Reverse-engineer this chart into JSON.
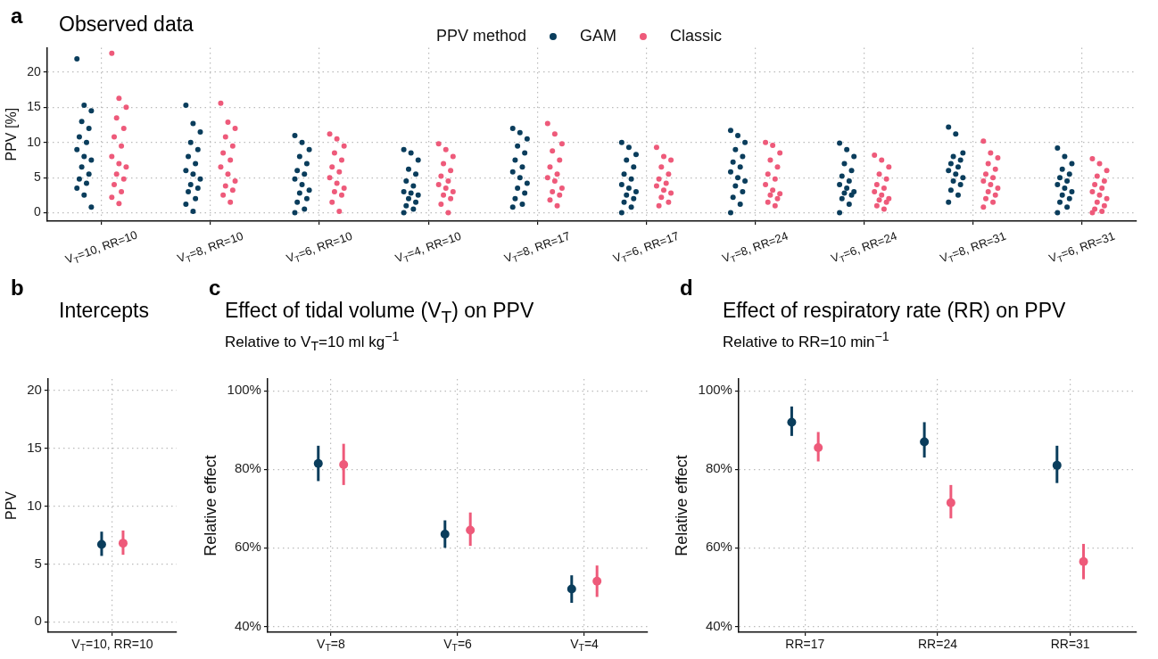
{
  "chart_data": [
    {
      "type": "scatter",
      "title": "Observed data",
      "ylabel": "PPV [%]",
      "annotations": [
        "a"
      ],
      "legend": "top",
      "legend_title": "PPV method",
      "marker": "circle",
      "grid": true,
      "categories": [
        "V$_{T}$=10, RR=10",
        "V$_{T}$=8, RR=10",
        "V$_{T}$=6, RR=10",
        "V$_{T}$=4, RR=10",
        "V$_{T}$=8, RR=17",
        "V$_{T}$=6, RR=17",
        "V$_{T}$=8, RR=24",
        "V$_{T}$=6, RR=24",
        "V$_{T}$=8, RR=31",
        "V$_{T}$=6, RR=31"
      ],
      "ylim": [
        -1.2,
        23.5
      ],
      "yticks": [
        0,
        5,
        10,
        15,
        20
      ],
      "series": [
        {
          "name": "GAM",
          "color": "#0a3d5c",
          "x": [
            "V$_{T}$=10, RR=10",
            "V$_{T}$=10, RR=10",
            "V$_{T}$=10, RR=10",
            "V$_{T}$=10, RR=10",
            "V$_{T}$=10, RR=10",
            "V$_{T}$=10, RR=10",
            "V$_{T}$=10, RR=10",
            "V$_{T}$=10, RR=10",
            "V$_{T}$=10, RR=10",
            "V$_{T}$=10, RR=10",
            "V$_{T}$=10, RR=10",
            "V$_{T}$=10, RR=10",
            "V$_{T}$=10, RR=10",
            "V$_{T}$=10, RR=10",
            "V$_{T}$=10, RR=10",
            "V$_{T}$=10, RR=10",
            "V$_{T}$=10, RR=10",
            "V$_{T}$=8, RR=10",
            "V$_{T}$=8, RR=10",
            "V$_{T}$=8, RR=10",
            "V$_{T}$=8, RR=10",
            "V$_{T}$=8, RR=10",
            "V$_{T}$=8, RR=10",
            "V$_{T}$=8, RR=10",
            "V$_{T}$=8, RR=10",
            "V$_{T}$=8, RR=10",
            "V$_{T}$=8, RR=10",
            "V$_{T}$=8, RR=10",
            "V$_{T}$=8, RR=10",
            "V$_{T}$=8, RR=10",
            "V$_{T}$=8, RR=10",
            "V$_{T}$=8, RR=10",
            "V$_{T}$=8, RR=10",
            "V$_{T}$=6, RR=10",
            "V$_{T}$=6, RR=10",
            "V$_{T}$=6, RR=10",
            "V$_{T}$=6, RR=10",
            "V$_{T}$=6, RR=10",
            "V$_{T}$=6, RR=10",
            "V$_{T}$=6, RR=10",
            "V$_{T}$=6, RR=10",
            "V$_{T}$=6, RR=10",
            "V$_{T}$=6, RR=10",
            "V$_{T}$=6, RR=10",
            "V$_{T}$=6, RR=10",
            "V$_{T}$=6, RR=10",
            "V$_{T}$=6, RR=10",
            "V$_{T}$=6, RR=10",
            "V$_{T}$=4, RR=10",
            "V$_{T}$=4, RR=10",
            "V$_{T}$=4, RR=10",
            "V$_{T}$=4, RR=10",
            "V$_{T}$=4, RR=10",
            "V$_{T}$=4, RR=10",
            "V$_{T}$=4, RR=10",
            "V$_{T}$=4, RR=10",
            "V$_{T}$=4, RR=10",
            "V$_{T}$=4, RR=10",
            "V$_{T}$=4, RR=10",
            "V$_{T}$=4, RR=10",
            "V$_{T}$=4, RR=10",
            "V$_{T}$=4, RR=10",
            "V$_{T}$=4, RR=10",
            "V$_{T}$=8, RR=17",
            "V$_{T}$=8, RR=17",
            "V$_{T}$=8, RR=17",
            "V$_{T}$=8, RR=17",
            "V$_{T}$=8, RR=17",
            "V$_{T}$=8, RR=17",
            "V$_{T}$=8, RR=17",
            "V$_{T}$=8, RR=17",
            "V$_{T}$=8, RR=17",
            "V$_{T}$=8, RR=17",
            "V$_{T}$=8, RR=17",
            "V$_{T}$=8, RR=17",
            "V$_{T}$=8, RR=17",
            "V$_{T}$=8, RR=17",
            "V$_{T}$=8, RR=17",
            "V$_{T}$=6, RR=17",
            "V$_{T}$=6, RR=17",
            "V$_{T}$=6, RR=17",
            "V$_{T}$=6, RR=17",
            "V$_{T}$=6, RR=17",
            "V$_{T}$=6, RR=17",
            "V$_{T}$=6, RR=17",
            "V$_{T}$=6, RR=17",
            "V$_{T}$=6, RR=17",
            "V$_{T}$=6, RR=17",
            "V$_{T}$=6, RR=17",
            "V$_{T}$=6, RR=17",
            "V$_{T}$=6, RR=17",
            "V$_{T}$=6, RR=17",
            "V$_{T}$=6, RR=17",
            "V$_{T}$=8, RR=24",
            "V$_{T}$=8, RR=24",
            "V$_{T}$=8, RR=24",
            "V$_{T}$=8, RR=24",
            "V$_{T}$=8, RR=24",
            "V$_{T}$=8, RR=24",
            "V$_{T}$=8, RR=24",
            "V$_{T}$=8, RR=24",
            "V$_{T}$=8, RR=24",
            "V$_{T}$=8, RR=24",
            "V$_{T}$=8, RR=24",
            "V$_{T}$=8, RR=24",
            "V$_{T}$=8, RR=24",
            "V$_{T}$=8, RR=24",
            "V$_{T}$=8, RR=24",
            "V$_{T}$=6, RR=24",
            "V$_{T}$=6, RR=24",
            "V$_{T}$=6, RR=24",
            "V$_{T}$=6, RR=24",
            "V$_{T}$=6, RR=24",
            "V$_{T}$=6, RR=24",
            "V$_{T}$=6, RR=24",
            "V$_{T}$=6, RR=24",
            "V$_{T}$=6, RR=24",
            "V$_{T}$=6, RR=24",
            "V$_{T}$=6, RR=24",
            "V$_{T}$=6, RR=24",
            "V$_{T}$=6, RR=24",
            "V$_{T}$=6, RR=24",
            "V$_{T}$=6, RR=24",
            "V$_{T}$=8, RR=31",
            "V$_{T}$=8, RR=31",
            "V$_{T}$=8, RR=31",
            "V$_{T}$=8, RR=31",
            "V$_{T}$=8, RR=31",
            "V$_{T}$=8, RR=31",
            "V$_{T}$=8, RR=31",
            "V$_{T}$=8, RR=31",
            "V$_{T}$=8, RR=31",
            "V$_{T}$=8, RR=31",
            "V$_{T}$=8, RR=31",
            "V$_{T}$=8, RR=31",
            "V$_{T}$=8, RR=31",
            "V$_{T}$=8, RR=31",
            "V$_{T}$=8, RR=31",
            "V$_{T}$=6, RR=31",
            "V$_{T}$=6, RR=31",
            "V$_{T}$=6, RR=31",
            "V$_{T}$=6, RR=31",
            "V$_{T}$=6, RR=31",
            "V$_{T}$=6, RR=31",
            "V$_{T}$=6, RR=31",
            "V$_{T}$=6, RR=31",
            "V$_{T}$=6, RR=31",
            "V$_{T}$=6, RR=31",
            "V$_{T}$=6, RR=31",
            "V$_{T}$=6, RR=31",
            "V$_{T}$=6, RR=31",
            "V$_{T}$=6, RR=31",
            "V$_{T}$=6, RR=31"
          ],
          "values": [
            21.9,
            15.3,
            14.5,
            13,
            12,
            10.8,
            10,
            9,
            8,
            7.5,
            6.5,
            5.5,
            4.8,
            4.2,
            3.5,
            2.5,
            0.8,
            15.3,
            12.7,
            11.5,
            10,
            9,
            8,
            7,
            6,
            5.5,
            4.8,
            4,
            3.5,
            3,
            2,
            1.2,
            0.2,
            11,
            10,
            9,
            8,
            7,
            6,
            5.5,
            4.8,
            4,
            3.2,
            2.8,
            2,
            1.5,
            0.5,
            0,
            9,
            8.5,
            7.5,
            6.2,
            5.5,
            4.5,
            3.8,
            3,
            2.8,
            2.5,
            2,
            1.5,
            1,
            0.5,
            0,
            12,
            11.4,
            10.5,
            9.5,
            8.5,
            7.5,
            6.5,
            5.8,
            5,
            4.2,
            3.5,
            2.8,
            2,
            1.2,
            0.8,
            10,
            9.3,
            8.3,
            7.5,
            6.5,
            5.5,
            4.8,
            4,
            3.5,
            3,
            2.5,
            2,
            1.5,
            0.8,
            0,
            11.7,
            11,
            10,
            9,
            8,
            7.2,
            6.5,
            5.8,
            5,
            4.5,
            3.8,
            3,
            2.2,
            1.2,
            0,
            9.9,
            9,
            8,
            7,
            6,
            5.2,
            4.5,
            4,
            3.5,
            3,
            2.8,
            2.5,
            2,
            1.2,
            0,
            12.2,
            11.2,
            8.5,
            8,
            7.5,
            7,
            6.5,
            6,
            5.5,
            5,
            4.5,
            4,
            3.2,
            2.5,
            1.5,
            9.2,
            8,
            7,
            6.2,
            5.5,
            5,
            4.5,
            4,
            3.5,
            3,
            2.5,
            2,
            1.5,
            0.8,
            0
          ]
        },
        {
          "name": "Classic",
          "color": "#ee5a7a",
          "x": [
            "V$_{T}$=10, RR=10",
            "V$_{T}$=10, RR=10",
            "V$_{T}$=10, RR=10",
            "V$_{T}$=10, RR=10",
            "V$_{T}$=10, RR=10",
            "V$_{T}$=10, RR=10",
            "V$_{T}$=10, RR=10",
            "V$_{T}$=10, RR=10",
            "V$_{T}$=10, RR=10",
            "V$_{T}$=10, RR=10",
            "V$_{T}$=10, RR=10",
            "V$_{T}$=10, RR=10",
            "V$_{T}$=10, RR=10",
            "V$_{T}$=10, RR=10",
            "V$_{T}$=10, RR=10",
            "V$_{T}$=10, RR=10",
            "V$_{T}$=8, RR=10",
            "V$_{T}$=8, RR=10",
            "V$_{T}$=8, RR=10",
            "V$_{T}$=8, RR=10",
            "V$_{T}$=8, RR=10",
            "V$_{T}$=8, RR=10",
            "V$_{T}$=8, RR=10",
            "V$_{T}$=8, RR=10",
            "V$_{T}$=8, RR=10",
            "V$_{T}$=8, RR=10",
            "V$_{T}$=8, RR=10",
            "V$_{T}$=8, RR=10",
            "V$_{T}$=8, RR=10",
            "V$_{T}$=8, RR=10",
            "V$_{T}$=6, RR=10",
            "V$_{T}$=6, RR=10",
            "V$_{T}$=6, RR=10",
            "V$_{T}$=6, RR=10",
            "V$_{T}$=6, RR=10",
            "V$_{T}$=6, RR=10",
            "V$_{T}$=6, RR=10",
            "V$_{T}$=6, RR=10",
            "V$_{T}$=6, RR=10",
            "V$_{T}$=6, RR=10",
            "V$_{T}$=6, RR=10",
            "V$_{T}$=6, RR=10",
            "V$_{T}$=6, RR=10",
            "V$_{T}$=6, RR=10",
            "V$_{T}$=4, RR=10",
            "V$_{T}$=4, RR=10",
            "V$_{T}$=4, RR=10",
            "V$_{T}$=4, RR=10",
            "V$_{T}$=4, RR=10",
            "V$_{T}$=4, RR=10",
            "V$_{T}$=4, RR=10",
            "V$_{T}$=4, RR=10",
            "V$_{T}$=4, RR=10",
            "V$_{T}$=4, RR=10",
            "V$_{T}$=4, RR=10",
            "V$_{T}$=4, RR=10",
            "V$_{T}$=4, RR=10",
            "V$_{T}$=4, RR=10",
            "V$_{T}$=8, RR=17",
            "V$_{T}$=8, RR=17",
            "V$_{T}$=8, RR=17",
            "V$_{T}$=8, RR=17",
            "V$_{T}$=8, RR=17",
            "V$_{T}$=8, RR=17",
            "V$_{T}$=8, RR=17",
            "V$_{T}$=8, RR=17",
            "V$_{T}$=8, RR=17",
            "V$_{T}$=8, RR=17",
            "V$_{T}$=8, RR=17",
            "V$_{T}$=8, RR=17",
            "V$_{T}$=8, RR=17",
            "V$_{T}$=8, RR=17",
            "V$_{T}$=6, RR=17",
            "V$_{T}$=6, RR=17",
            "V$_{T}$=6, RR=17",
            "V$_{T}$=6, RR=17",
            "V$_{T}$=6, RR=17",
            "V$_{T}$=6, RR=17",
            "V$_{T}$=6, RR=17",
            "V$_{T}$=6, RR=17",
            "V$_{T}$=6, RR=17",
            "V$_{T}$=6, RR=17",
            "V$_{T}$=6, RR=17",
            "V$_{T}$=6, RR=17",
            "V$_{T}$=6, RR=17",
            "V$_{T}$=8, RR=24",
            "V$_{T}$=8, RR=24",
            "V$_{T}$=8, RR=24",
            "V$_{T}$=8, RR=24",
            "V$_{T}$=8, RR=24",
            "V$_{T}$=8, RR=24",
            "V$_{T}$=8, RR=24",
            "V$_{T}$=8, RR=24",
            "V$_{T}$=8, RR=24",
            "V$_{T}$=8, RR=24",
            "V$_{T}$=8, RR=24",
            "V$_{T}$=8, RR=24",
            "V$_{T}$=8, RR=24",
            "V$_{T}$=8, RR=24",
            "V$_{T}$=6, RR=24",
            "V$_{T}$=6, RR=24",
            "V$_{T}$=6, RR=24",
            "V$_{T}$=6, RR=24",
            "V$_{T}$=6, RR=24",
            "V$_{T}$=6, RR=24",
            "V$_{T}$=6, RR=24",
            "V$_{T}$=6, RR=24",
            "V$_{T}$=6, RR=24",
            "V$_{T}$=6, RR=24",
            "V$_{T}$=6, RR=24",
            "V$_{T}$=6, RR=24",
            "V$_{T}$=6, RR=24",
            "V$_{T}$=6, RR=24",
            "V$_{T}$=8, RR=31",
            "V$_{T}$=8, RR=31",
            "V$_{T}$=8, RR=31",
            "V$_{T}$=8, RR=31",
            "V$_{T}$=8, RR=31",
            "V$_{T}$=8, RR=31",
            "V$_{T}$=8, RR=31",
            "V$_{T}$=8, RR=31",
            "V$_{T}$=8, RR=31",
            "V$_{T}$=8, RR=31",
            "V$_{T}$=8, RR=31",
            "V$_{T}$=8, RR=31",
            "V$_{T}$=8, RR=31",
            "V$_{T}$=8, RR=31",
            "V$_{T}$=8, RR=31",
            "V$_{T}$=6, RR=31",
            "V$_{T}$=6, RR=31",
            "V$_{T}$=6, RR=31",
            "V$_{T}$=6, RR=31",
            "V$_{T}$=6, RR=31",
            "V$_{T}$=6, RR=31",
            "V$_{T}$=6, RR=31",
            "V$_{T}$=6, RR=31",
            "V$_{T}$=6, RR=31",
            "V$_{T}$=6, RR=31",
            "V$_{T}$=6, RR=31",
            "V$_{T}$=6, RR=31",
            "V$_{T}$=6, RR=31",
            "V$_{T}$=6, RR=31",
            "V$_{T}$=6, RR=31"
          ],
          "values": [
            22.7,
            16.3,
            15,
            13.5,
            12,
            10.8,
            9.5,
            8,
            7,
            6.5,
            5.5,
            4.8,
            4,
            3,
            2.2,
            1.3,
            15.6,
            12.9,
            12,
            10.8,
            9.5,
            8.5,
            7.5,
            6.5,
            5.5,
            4.5,
            3.8,
            3.2,
            2.5,
            1.5,
            11.2,
            10.5,
            9.5,
            8.5,
            7.5,
            6.5,
            5.8,
            5,
            4.2,
            3.5,
            3,
            2.5,
            1.5,
            0.2,
            9.8,
            9,
            8,
            7,
            6,
            5.2,
            4.5,
            4,
            3.5,
            3,
            2.5,
            2,
            1.2,
            0,
            12.7,
            11.2,
            9.8,
            8.8,
            7.5,
            6.5,
            5.5,
            5,
            4.5,
            3.5,
            3,
            2.5,
            1.8,
            1,
            9.3,
            8,
            7.5,
            6.5,
            5.5,
            4.8,
            4.2,
            3.8,
            3.2,
            2.8,
            2.2,
            1.5,
            1,
            10,
            9.6,
            8.5,
            7.5,
            6.5,
            5.5,
            4.8,
            4,
            3.2,
            2.7,
            2.5,
            2,
            1.5,
            1,
            8.2,
            7.5,
            6.5,
            5.5,
            4.8,
            4,
            3.5,
            3,
            2.5,
            2,
            1.8,
            1.5,
            1,
            0.5,
            10.2,
            8.5,
            7.8,
            7,
            6.2,
            5.5,
            5,
            4.5,
            4,
            3.5,
            3,
            2.5,
            2,
            1.5,
            0.8,
            7.7,
            7,
            6,
            5.2,
            4.5,
            4,
            3.5,
            3,
            2.5,
            2,
            1.5,
            1,
            0.5,
            0.2,
            0
          ]
        }
      ]
    },
    {
      "type": "scatter",
      "title": "Intercepts",
      "ylabel": "PPV",
      "annotations": [
        "b"
      ],
      "marker": "circle",
      "grid": true,
      "categories": [
        "V$_{T}$=10, RR=10"
      ],
      "ylim": [
        -0.9,
        21
      ],
      "yticks": [
        0,
        5,
        10,
        15,
        20
      ],
      "series": [
        {
          "color": "#0a3d5c",
          "values": [
            6.7
          ],
          "errors": [
            [
              5.7,
              7.8
            ]
          ]
        },
        {
          "color": "#ee5a7a",
          "values": [
            6.8
          ],
          "errors": [
            [
              5.8,
              7.9
            ]
          ]
        }
      ]
    },
    {
      "type": "scatter",
      "title": "Effect of tidal volume (V$_{T}$) on PPV",
      "subtitle": "Relative to V$_{T}$=10 ml kg$^{−1}$",
      "ylabel": "Relative effect",
      "annotations": [
        "c"
      ],
      "marker": "circle",
      "grid": true,
      "categories": [
        "V$_{T}$=8",
        "V$_{T}$=6",
        "V$_{T}$=4"
      ],
      "ylim": [
        38.5,
        103
      ],
      "yticks": [
        {
          "value": 40,
          "label": "40%"
        },
        {
          "value": 60,
          "label": "60%"
        },
        {
          "value": 80,
          "label": "80%"
        },
        {
          "value": 100,
          "label": "100%"
        }
      ],
      "series": [
        {
          "color": "#0a3d5c",
          "values": [
            81.5,
            63.5,
            49.5
          ],
          "errors": [
            [
              77,
              86
            ],
            [
              60,
              67
            ],
            [
              46,
              53
            ]
          ]
        },
        {
          "color": "#ee5a7a",
          "values": [
            81.2,
            64.5,
            51.5
          ],
          "errors": [
            [
              76,
              86.5
            ],
            [
              60.5,
              69
            ],
            [
              47.5,
              55.5
            ]
          ]
        }
      ]
    },
    {
      "type": "scatter",
      "title": "Effect of respiratory rate (RR) on PPV",
      "subtitle": "Relative to RR=10 min$^{−1}$",
      "ylabel": "Relative effect",
      "annotations": [
        "d"
      ],
      "marker": "circle",
      "grid": true,
      "categories": [
        "RR=17",
        "RR=24",
        "RR=31"
      ],
      "ylim": [
        38.5,
        103
      ],
      "yticks": [
        {
          "value": 40,
          "label": "40%"
        },
        {
          "value": 60,
          "label": "60%"
        },
        {
          "value": 80,
          "label": "80%"
        },
        {
          "value": 100,
          "label": "100%"
        }
      ],
      "series": [
        {
          "color": "#0a3d5c",
          "values": [
            92,
            87,
            81
          ],
          "errors": [
            [
              88.5,
              96
            ],
            [
              83,
              92
            ],
            [
              76.5,
              86
            ]
          ]
        },
        {
          "color": "#ee5a7a",
          "values": [
            85.5,
            71.5,
            56.5
          ],
          "errors": [
            [
              82,
              89.5
            ],
            [
              67.5,
              76
            ],
            [
              52,
              61
            ]
          ]
        }
      ]
    }
  ]
}
